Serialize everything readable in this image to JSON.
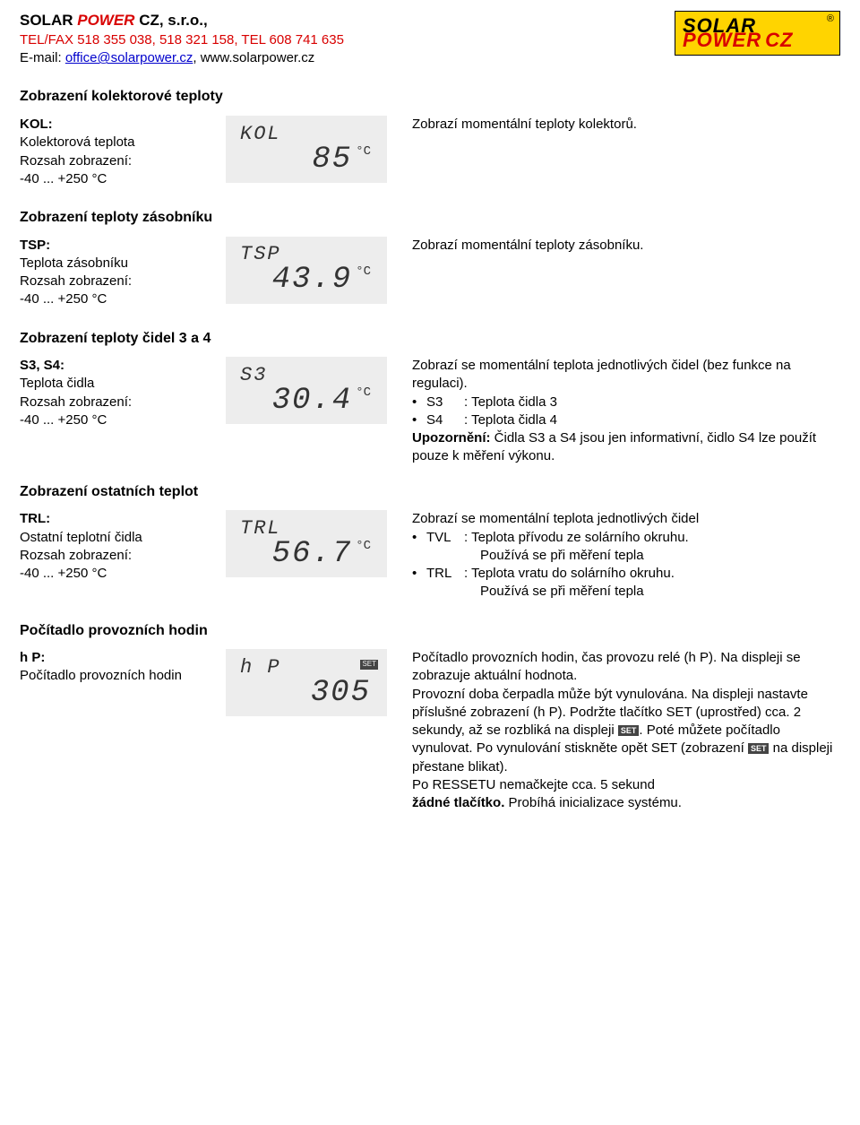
{
  "header": {
    "company_solar": "SOLAR",
    "company_power": "POWER",
    "company_cz": "CZ, s.r.o.",
    "tel": "TEL/FAX 518 355 038, 518 321 158, TEL 608 741 635",
    "email_label": "E-mail: ",
    "email": "office@solarpower.cz",
    "sep": ", ",
    "www": "www.solarpower.cz"
  },
  "logo": {
    "solar": "SOLAR",
    "power": "POWER",
    "cz": "CZ",
    "reg": "®"
  },
  "sections": {
    "kol": {
      "title": "Zobrazení kolektorové teploty",
      "name": "KOL:",
      "sub1": "Kolektorová teplota",
      "sub2": "Rozsah zobrazení:",
      "sub3": "-40 ... +250 °C",
      "lcd_label": "KOL",
      "lcd_value": "85",
      "lcd_unit": "°C",
      "desc": "Zobrazí momentální teploty kolektorů."
    },
    "tsp": {
      "title": "Zobrazení teploty zásobníku",
      "name": "TSP:",
      "sub1": "Teplota zásobníku",
      "sub2": "Rozsah zobrazení:",
      "sub3": "-40 ... +250 °C",
      "lcd_label": "TSP",
      "lcd_value": "43.9",
      "lcd_unit": "°C",
      "desc": "Zobrazí momentální teploty zásobníku."
    },
    "s3s4": {
      "title": "Zobrazení teploty čidel 3 a 4",
      "name": "S3, S4:",
      "sub1": "Teplota čidla",
      "sub2": "Rozsah zobrazení:",
      "sub3": "-40 ... +250 °C",
      "lcd_label": "S3",
      "lcd_value": "30.4",
      "lcd_unit": "°C",
      "desc_intro": "Zobrazí se momentální teplota jednotlivých čidel (bez funkce na regulaci).",
      "b1_code": "S3",
      "b1_text": ": Teplota čidla 3",
      "b2_code": "S4",
      "b2_text": ": Teplota čidla 4",
      "warn_label": "Upozornění:",
      "warn_text": " Čidla S3 a S4 jsou jen informativní, čidlo S4 lze použít pouze k měření výkonu."
    },
    "trl": {
      "title": "Zobrazení ostatních teplot",
      "name": "TRL:",
      "sub1": "Ostatní teplotní čidla",
      "sub2": "Rozsah zobrazení:",
      "sub3": "-40 ... +250 °C",
      "lcd_label": "TRL",
      "lcd_value": "56.7",
      "lcd_unit": "°C",
      "desc_intro": "Zobrazí se momentální teplota jednotlivých čidel",
      "b1_code": "TVL",
      "b1_text": ": Teplota přívodu ze solárního okruhu.",
      "b1_sub": "Používá se při měření tepla",
      "b2_code": "TRL",
      "b2_text": ": Teplota vratu do solárního okruhu.",
      "b2_sub": "Používá se při měření tepla"
    },
    "hp": {
      "title": "Počítadlo provozních hodin",
      "name": "h P:",
      "sub1": "Počítadlo provozních hodin",
      "lcd_label": "h  P",
      "lcd_value": "305",
      "d1": "Počítadlo provozních hodin, čas provozu relé (h P). Na displeji se zobrazuje aktuální hodnota.",
      "d2a": "Provozní doba čerpadla může být vynulována. Na displeji nastavte příslušné zobrazení (h P). Podržte tlačítko SET (uprostřed) cca. 2 sekundy, až se rozbliká na displeji ",
      "d2b": ". Poté můžete počítadlo vynulovat. Po vynulování stiskněte opět SET (zobrazení ",
      "d2c": " na displeji přestane blikat).",
      "d3": "Po RESSETU nemačkejte cca. 5 sekund",
      "d4_bold": "žádné tlačítko.",
      "d4_rest": " Probíhá inicializace systému.",
      "set_badge": "SET"
    }
  }
}
